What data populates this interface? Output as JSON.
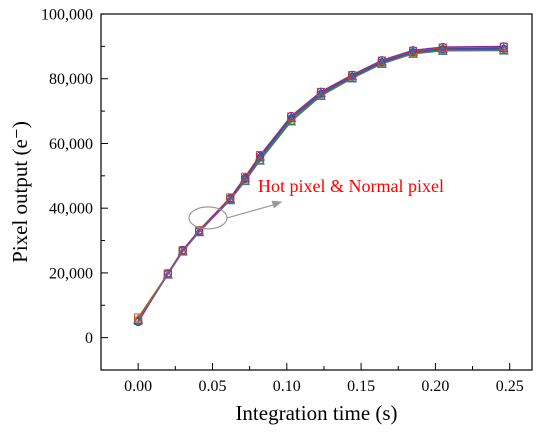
{
  "chart_data": {
    "type": "line",
    "xlabel": "Integration time (s)",
    "ylabel": "Pixel output (e⁻)",
    "xlim": [
      -0.025,
      0.265
    ],
    "ylim": [
      -10000,
      100000
    ],
    "xticks": [
      0.0,
      0.05,
      0.1,
      0.15,
      0.2,
      0.25
    ],
    "xtick_labels": [
      "0.00",
      "0.05",
      "0.10",
      "0.15",
      "0.20",
      "0.25"
    ],
    "yticks": [
      0,
      20000,
      40000,
      60000,
      80000,
      100000
    ],
    "ytick_labels": [
      "0",
      "20,000",
      "40,000",
      "60,000",
      "80,000",
      "100,000"
    ],
    "grid": false,
    "legend": "none",
    "annotation": {
      "text": "Hot pixel & Normal pixel",
      "color": "#ff0000",
      "ellipse_center": [
        0.047,
        37000
      ],
      "arrow_to": [
        0.097,
        42000
      ]
    },
    "series": [
      {
        "color": "#2e7d32",
        "values": [
          5200,
          19500,
          26700,
          32700,
          42600,
          48600,
          55000,
          67100,
          74900,
          80300,
          84800,
          87900,
          88800,
          88900
        ]
      },
      {
        "color": "#00897b",
        "values": [
          5000,
          19700,
          26900,
          33000,
          43000,
          49000,
          55600,
          67700,
          75300,
          80600,
          85100,
          88200,
          89100,
          89200
        ]
      },
      {
        "color": "#3949ab",
        "values": [
          5500,
          19600,
          26800,
          32900,
          42900,
          49300,
          56000,
          68000,
          75600,
          80800,
          85300,
          88400,
          89300,
          89500
        ]
      },
      {
        "color": "#e65100",
        "values": [
          6200,
          19800,
          27000,
          33200,
          43300,
          49700,
          56400,
          68300,
          75900,
          81100,
          85600,
          88600,
          89600,
          89900
        ]
      },
      {
        "color": "#8e24aa",
        "values": [
          4800,
          19900,
          27100,
          33100,
          43100,
          49400,
          56200,
          68500,
          76000,
          81200,
          85700,
          88800,
          89800,
          90000
        ]
      },
      {
        "color": "#6d6d6d",
        "values": [
          5700,
          19500,
          26600,
          32600,
          42500,
          48400,
          54700,
          66800,
          74700,
          80100,
          84600,
          87700,
          88600,
          88700
        ]
      }
    ],
    "x": [
      0.0,
      0.02,
      0.03,
      0.041,
      0.062,
      0.072,
      0.082,
      0.103,
      0.123,
      0.144,
      0.164,
      0.185,
      0.205,
      0.246
    ]
  }
}
